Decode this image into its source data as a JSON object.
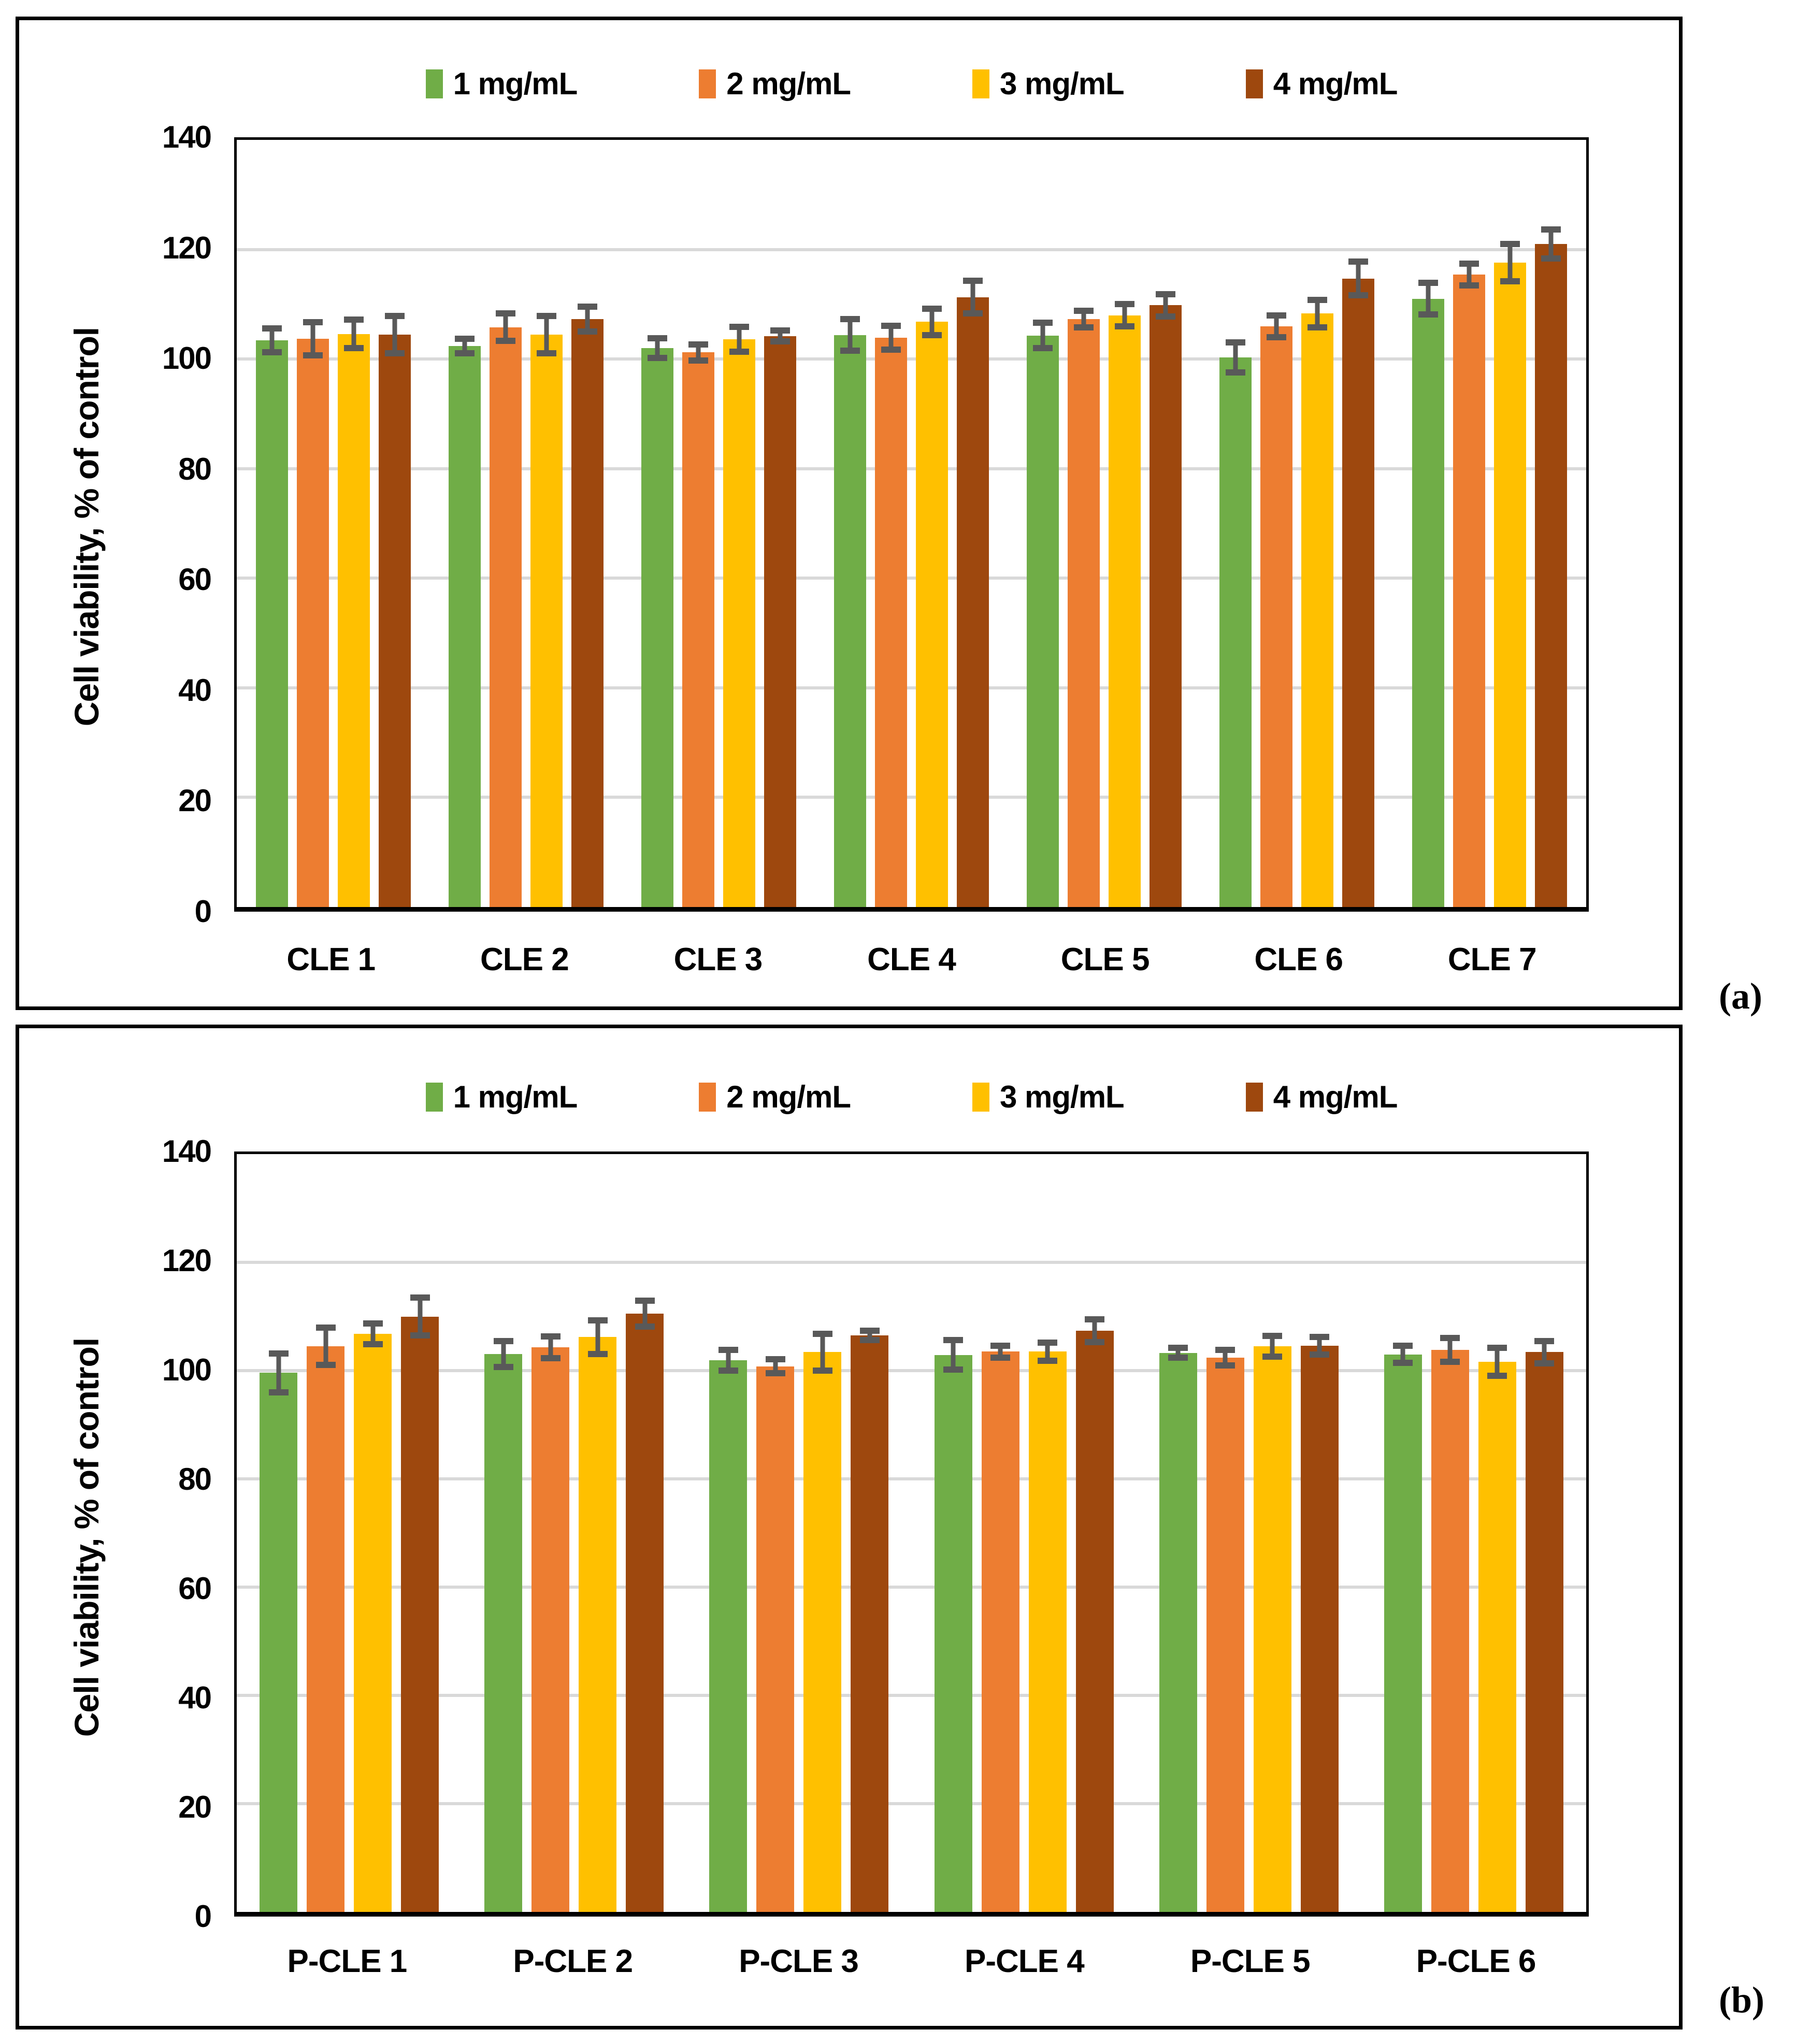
{
  "figure": {
    "background": "#FFFFFF",
    "border_color": "#000000",
    "gridline_color": "#D9D9D9",
    "error_bar_color": "#595959",
    "panel_a_label": "(a)",
    "panel_b_label": "(b)"
  },
  "chart_data": [
    {
      "type": "bar",
      "panel_label": "(a)",
      "title": "",
      "xlabel": "",
      "ylabel": "Cell viability, % of control",
      "ylim": [
        0,
        140
      ],
      "yticks": [
        0,
        20,
        40,
        60,
        80,
        100,
        120,
        140
      ],
      "grid": true,
      "legend_position": "top",
      "gridline_color": "#D9D9D9",
      "error_bar_color": "#595959",
      "categories": [
        "CLE 1",
        "CLE 2",
        "CLE 3",
        "CLE 4",
        "CLE 5",
        "CLE 6",
        "CLE 7"
      ],
      "series": [
        {
          "name": "1 mg/mL",
          "color": "#70AD47",
          "values": [
            103.4,
            102.4,
            102.0,
            104.4,
            104.3,
            100.3,
            111.0
          ],
          "errors": [
            2.2,
            1.3,
            1.8,
            2.9,
            2.3,
            2.7,
            2.9
          ]
        },
        {
          "name": "2 mg/mL",
          "color": "#ED7D31",
          "values": [
            103.7,
            105.8,
            101.2,
            103.9,
            107.3,
            106.0,
            115.4
          ],
          "errors": [
            3.0,
            2.5,
            1.5,
            2.2,
            1.5,
            2.0,
            2.0
          ]
        },
        {
          "name": "3 mg/mL",
          "color": "#FFC000",
          "values": [
            104.6,
            104.5,
            103.6,
            106.8,
            108.0,
            108.3,
            117.6
          ],
          "errors": [
            2.6,
            3.4,
            2.3,
            2.4,
            2.0,
            2.5,
            3.4
          ]
        },
        {
          "name": "4 mg/mL",
          "color": "#9E480E",
          "values": [
            104.5,
            107.3,
            104.2,
            111.3,
            109.8,
            114.7,
            121.0
          ],
          "errors": [
            3.4,
            2.3,
            1.0,
            3.0,
            2.0,
            3.1,
            2.6
          ]
        }
      ]
    },
    {
      "type": "bar",
      "panel_label": "(b)",
      "title": "",
      "xlabel": "",
      "ylabel": "Cell viability, % of control",
      "ylim": [
        0,
        140
      ],
      "yticks": [
        0,
        20,
        40,
        60,
        80,
        100,
        120,
        140
      ],
      "grid": true,
      "legend_position": "top",
      "gridline_color": "#D9D9D9",
      "error_bar_color": "#595959",
      "categories": [
        "P-CLE 1",
        "P-CLE 2",
        "P-CLE 3",
        "P-CLE 4",
        "P-CLE 5",
        "P-CLE 6"
      ],
      "series": [
        {
          "name": "1 mg/mL",
          "color": "#70AD47",
          "values": [
            99.6,
            103.1,
            101.9,
            102.9,
            103.3,
            103.0
          ],
          "errors": [
            3.6,
            2.4,
            1.9,
            2.7,
            0.9,
            1.6
          ]
        },
        {
          "name": "2 mg/mL",
          "color": "#ED7D31",
          "values": [
            104.5,
            104.3,
            100.8,
            103.5,
            102.4,
            103.8
          ],
          "errors": [
            3.4,
            2.0,
            1.3,
            1.1,
            1.4,
            2.2
          ]
        },
        {
          "name": "3 mg/mL",
          "color": "#FFC000",
          "values": [
            106.8,
            106.2,
            103.4,
            103.5,
            104.5,
            101.6
          ],
          "errors": [
            1.9,
            3.1,
            3.4,
            1.7,
            1.9,
            2.6
          ]
        },
        {
          "name": "4 mg/mL",
          "color": "#9E480E",
          "values": [
            110.0,
            110.5,
            106.5,
            107.4,
            104.6,
            103.4
          ],
          "errors": [
            3.5,
            2.4,
            0.9,
            2.1,
            1.6,
            2.1
          ]
        }
      ]
    }
  ]
}
